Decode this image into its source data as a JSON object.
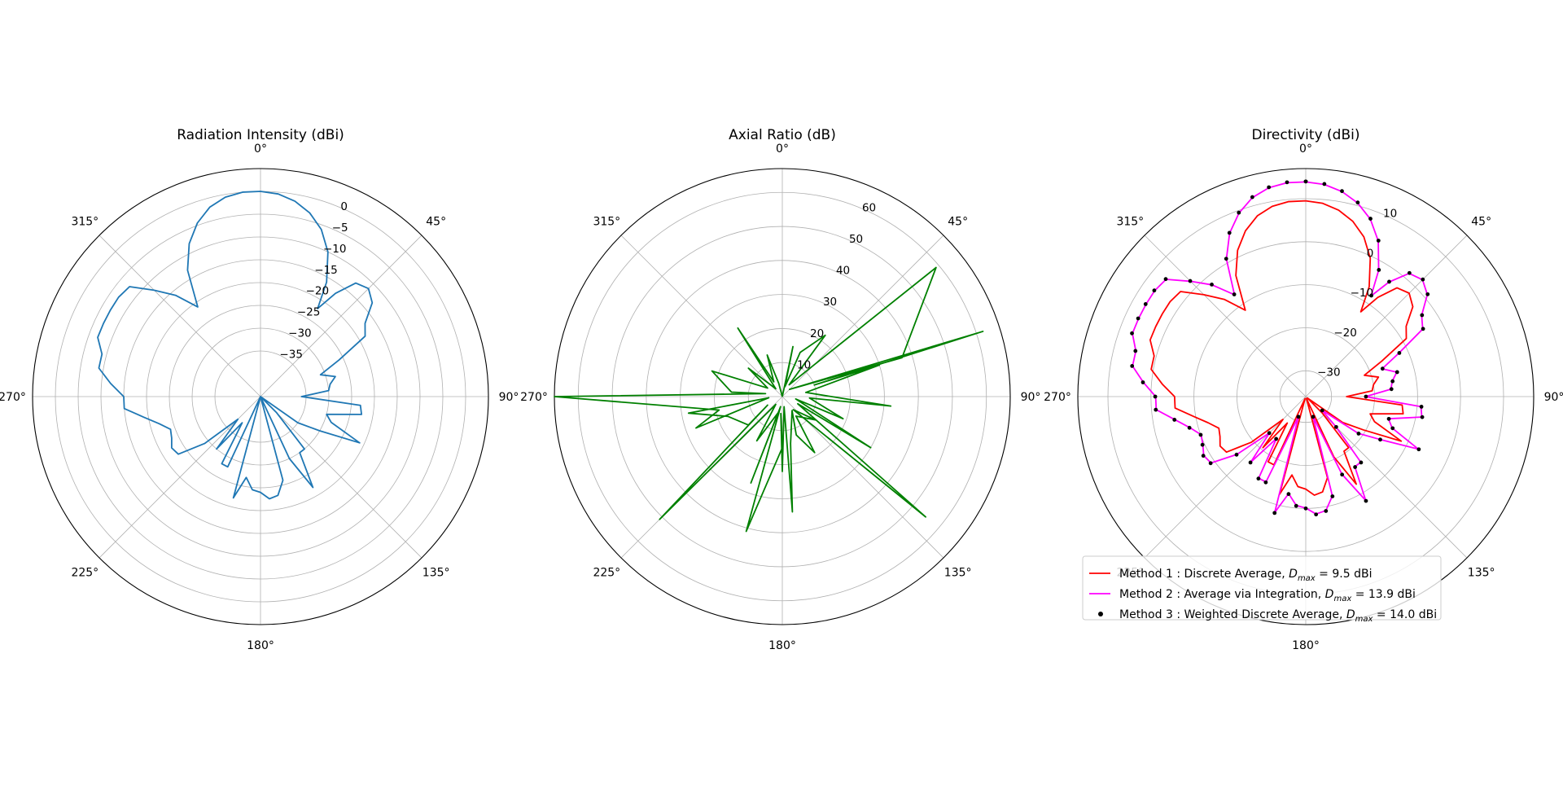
{
  "figure": {
    "angle_tick_labels": [
      "0°",
      "45°",
      "90°",
      "135°",
      "180°",
      "225°",
      "270°",
      "315°"
    ]
  },
  "chart_data": [
    {
      "type": "line",
      "projection": "polar",
      "title": "Radiation Intensity (dBi)",
      "theta_zero": "top",
      "theta_direction": "clockwise",
      "rlim": [
        -45,
        5
      ],
      "r_ticks": [
        -35,
        -30,
        -25,
        -20,
        -15,
        -10,
        -5,
        0
      ],
      "r_tick_labels": [
        "−35",
        "−30",
        "−25",
        "−20",
        "−15",
        "−10",
        "−5",
        "0"
      ],
      "grid": true,
      "series": [
        {
          "color": "#1f77b4",
          "theta_deg": [
            0,
            5,
            10,
            15,
            20,
            25,
            30,
            33,
            36,
            40,
            45,
            50,
            55,
            60,
            65,
            70,
            75,
            80,
            85,
            90,
            95,
            100,
            105,
            110,
            115,
            120,
            125,
            130,
            135,
            140,
            145,
            150,
            155,
            160,
            165,
            170,
            175,
            180,
            185,
            190,
            195,
            200,
            205,
            210,
            215,
            220,
            225,
            230,
            235,
            240,
            245,
            250,
            255,
            260,
            265,
            270,
            275,
            280,
            285,
            290,
            295,
            300,
            305,
            310,
            315,
            320,
            325,
            330,
            335,
            340,
            345,
            350,
            355,
            360
          ],
          "r": [
            0,
            -0.4,
            -1.5,
            -3.3,
            -6,
            -10,
            -16,
            -22,
            -17,
            -12.5,
            -11.5,
            -13,
            -17,
            -18.5,
            -26,
            -31,
            -28,
            -29.5,
            -30,
            -36,
            -23,
            -22.5,
            -30,
            -28.5,
            -21,
            -30,
            -35,
            -45,
            -40,
            -30,
            -30,
            -22,
            -30,
            -45,
            -26,
            -23,
            -22.5,
            -24,
            -24.5,
            -27,
            -22,
            -45,
            -28,
            -28,
            -38,
            -30,
            -38,
            -29,
            -23,
            -22.5,
            -23.5,
            -24,
            -22,
            -19,
            -15,
            -15,
            -12,
            -9,
            -9,
            -7,
            -7,
            -7,
            -7,
            -7.5,
            -12,
            -16,
            -21,
            -13,
            -8,
            -4.5,
            -2,
            -0.6,
            0,
            0
          ]
        }
      ]
    },
    {
      "type": "line",
      "projection": "polar",
      "title": "Axial Ratio (dB)",
      "theta_zero": "top",
      "theta_direction": "clockwise",
      "rlim": [
        0,
        67
      ],
      "r_ticks": [
        10,
        20,
        30,
        40,
        50,
        60
      ],
      "r_tick_labels": [
        "10",
        "20",
        "30",
        "40",
        "50",
        "60"
      ],
      "grid": true,
      "series": [
        {
          "color": "#008000",
          "theta_deg": [
            0,
            12,
            15,
            22,
            35,
            30,
            50,
            72,
            45,
            72,
            70,
            72,
            80,
            95,
            93,
            110,
            100,
            120,
            115,
            130,
            140,
            125,
            145,
            150,
            160,
            145,
            170,
            175,
            170,
            180,
            185,
            180,
            195,
            190,
            200,
            195,
            210,
            220,
            225,
            240,
            230,
            250,
            260,
            265,
            250,
            258,
            270,
            280,
            275,
            290,
            300,
            310,
            320,
            327,
            330,
            340,
            345,
            0
          ],
          "r": [
            0,
            15,
            3,
            14,
            22,
            4,
            59,
            37,
            3,
            62,
            10,
            30,
            7,
            32,
            8,
            19,
            4,
            30,
            5,
            55,
            5,
            12,
            7,
            19,
            12,
            5,
            14,
            34,
            3,
            22,
            5,
            15,
            41,
            3,
            27,
            5,
            15,
            3,
            51,
            5,
            13,
            17,
            28,
            4,
            27,
            19,
            67,
            5,
            15,
            22,
            5,
            13,
            3,
            24,
            5,
            13,
            4,
            0
          ]
        }
      ]
    },
    {
      "type": "line",
      "projection": "polar",
      "title": "Directivity (dBi)",
      "theta_zero": "top",
      "theta_direction": "clockwise",
      "rlim": [
        -36,
        17
      ],
      "r_ticks": [
        -30,
        -20,
        -10,
        0,
        10
      ],
      "r_tick_labels": [
        "−30",
        "−20",
        "−10",
        "0",
        "10"
      ],
      "grid": true,
      "legend_placement": "lower right",
      "series": [
        {
          "name": "Method 1 : Discrete Average, D_max = 9.5 dBi",
          "legend_lead": "Method 1 : Discrete Average, ",
          "legend_value": " = 9.5 dBi",
          "style": "line",
          "color": "#ff0000",
          "theta_deg": [
            0,
            5,
            10,
            15,
            20,
            25,
            30,
            33,
            36,
            40,
            45,
            50,
            55,
            60,
            65,
            70,
            75,
            80,
            85,
            90,
            95,
            100,
            105,
            110,
            115,
            120,
            125,
            130,
            135,
            140,
            145,
            150,
            155,
            160,
            165,
            170,
            175,
            180,
            185,
            190,
            195,
            200,
            205,
            210,
            215,
            220,
            225,
            230,
            235,
            240,
            245,
            250,
            255,
            260,
            265,
            270,
            275,
            280,
            285,
            290,
            295,
            300,
            305,
            310,
            315,
            320,
            325,
            330,
            335,
            340,
            345,
            350,
            355,
            360
          ],
          "r": [
            9.5,
            9.1,
            8,
            6.2,
            3.5,
            -0.5,
            -6.5,
            -12.5,
            -7.5,
            -3,
            -2,
            -3.5,
            -7.5,
            -9,
            -16.5,
            -21.5,
            -18.5,
            -20,
            -20.5,
            -26.5,
            -13.5,
            -13,
            -20.5,
            -19,
            -11.5,
            -20.5,
            -25.5,
            -35.5,
            -30.5,
            -20.5,
            -20.5,
            -12.5,
            -20.5,
            -35.5,
            -16.5,
            -13.5,
            -13,
            -14.5,
            -15,
            -17.5,
            -12.5,
            -35.5,
            -18.5,
            -18.5,
            -28.5,
            -20.5,
            -28.5,
            -19.5,
            -13.5,
            -13,
            -14,
            -14.5,
            -12.5,
            -9.5,
            -5.5,
            -5.5,
            -2.5,
            0.5,
            0.5,
            2.5,
            2.5,
            2.5,
            2.5,
            2,
            -2.5,
            -6.5,
            -11.5,
            -3.5,
            1.5,
            5,
            7.5,
            8.9,
            9.5,
            9.5
          ]
        },
        {
          "name": "Method 2 : Average via Integration, D_max = 13.9 dBi",
          "legend_lead": "Method 2 : Average via Integration, ",
          "legend_value": " = 13.9 dBi",
          "style": "line",
          "color": "#ff00ff",
          "theta_deg": [
            0,
            5,
            10,
            15,
            20,
            25,
            30,
            33,
            36,
            40,
            45,
            50,
            55,
            60,
            65,
            70,
            75,
            80,
            85,
            90,
            95,
            100,
            105,
            110,
            115,
            120,
            125,
            130,
            135,
            140,
            145,
            150,
            155,
            160,
            165,
            170,
            175,
            180,
            185,
            190,
            195,
            200,
            205,
            210,
            215,
            220,
            225,
            230,
            235,
            240,
            245,
            250,
            255,
            260,
            265,
            270,
            275,
            280,
            285,
            290,
            295,
            300,
            305,
            310,
            315,
            320,
            325,
            330,
            335,
            340,
            345,
            350,
            355,
            360
          ],
          "r": [
            13.9,
            13.5,
            12.4,
            10.6,
            7.9,
            3.9,
            -2.1,
            -8.1,
            -3.1,
            1.4,
            2.4,
            0.9,
            -3.1,
            -4.6,
            -12.1,
            -17.1,
            -14.1,
            -15.6,
            -16.1,
            -22.1,
            -9.1,
            -8.6,
            -16.1,
            -14.6,
            -7.1,
            -16.1,
            -21.1,
            -31.1,
            -26.1,
            -16.1,
            -16.1,
            -8.1,
            -16.1,
            -31.1,
            -12.1,
            -9.1,
            -8.6,
            -10.1,
            -10.6,
            -13.1,
            -8.1,
            -31.1,
            -14.1,
            -14.1,
            -24.1,
            -16.1,
            -24.1,
            -15.1,
            -9.1,
            -8.6,
            -9.6,
            -10.1,
            -8.1,
            -5.1,
            -1.1,
            -1.1,
            1.9,
            4.9,
            4.9,
            6.9,
            6.9,
            6.9,
            6.9,
            6.4,
            1.9,
            -2.1,
            -7.1,
            0.9,
            5.9,
            9.4,
            11.9,
            13.3,
            13.9,
            13.9
          ]
        },
        {
          "name": "Method 3 : Weighted Discrete Average, D_max = 14.0 dBi",
          "legend_lead": "Method 3 : Weighted Discrete Average, ",
          "legend_value": " = 14.0 dBi",
          "style": "markers",
          "color": "#000000",
          "theta_deg": [
            0,
            5,
            10,
            15,
            20,
            25,
            30,
            33,
            36,
            40,
            45,
            50,
            55,
            60,
            65,
            70,
            75,
            80,
            85,
            90,
            95,
            100,
            105,
            110,
            115,
            120,
            125,
            130,
            135,
            140,
            145,
            150,
            155,
            160,
            165,
            170,
            175,
            180,
            185,
            190,
            195,
            200,
            205,
            210,
            215,
            220,
            225,
            230,
            235,
            240,
            245,
            250,
            255,
            260,
            265,
            270,
            275,
            280,
            285,
            290,
            295,
            300,
            305,
            310,
            315,
            320,
            325,
            330,
            335,
            340,
            345,
            350,
            355,
            360
          ],
          "r": [
            14,
            13.6,
            12.5,
            10.7,
            8,
            4,
            -2,
            -8,
            -3,
            1.5,
            2.5,
            1,
            -3,
            -4.5,
            -12,
            -17,
            -14,
            -15.5,
            -16,
            -22,
            -9,
            -8.5,
            -16,
            -14.5,
            -7,
            -16,
            -21,
            -31,
            -26,
            -16,
            -16,
            -8,
            -16,
            -31,
            -12,
            -9,
            -8.5,
            -10,
            -10.5,
            -13,
            -8,
            -31,
            -14,
            -14,
            -24,
            -16,
            -24,
            -15,
            -9,
            -8.5,
            -9.5,
            -10,
            -8,
            -5,
            -1,
            -1,
            2,
            5,
            5,
            7,
            7,
            7,
            7,
            6.5,
            2,
            -2,
            -7,
            1,
            6,
            9.5,
            12,
            13.4,
            14,
            14
          ]
        }
      ]
    }
  ]
}
